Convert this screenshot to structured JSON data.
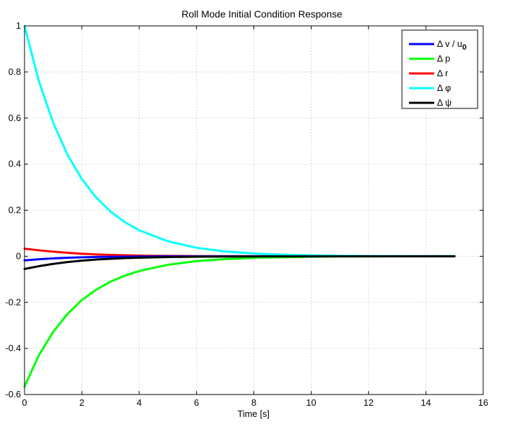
{
  "chart_data": {
    "type": "line",
    "title": "Roll Mode Initial Condition Response",
    "xlabel": "Time [s]",
    "ylabel": "",
    "xlim": [
      0,
      16
    ],
    "ylim": [
      -0.6,
      1
    ],
    "xticks": [
      0,
      2,
      4,
      6,
      8,
      10,
      12,
      14,
      16
    ],
    "yticks": [
      -0.6,
      -0.4,
      -0.2,
      0,
      0.2,
      0.4,
      0.6,
      0.8,
      1
    ],
    "xtick_labels": [
      "0",
      "2",
      "4",
      "6",
      "8",
      "10",
      "12",
      "14",
      "16"
    ],
    "ytick_labels": [
      "-0.6",
      "-0.4",
      "-0.2",
      "0",
      "0.2",
      "0.4",
      "0.6",
      "0.8",
      "1"
    ],
    "grid": true,
    "legend_position": "top-right",
    "series": [
      {
        "name": "Δ v / u0",
        "legend_main": "Δ v / u",
        "legend_sub": "0",
        "color": "#0000ff",
        "x": [
          0,
          0.5,
          1,
          1.5,
          2,
          2.5,
          3,
          4,
          5,
          6,
          7,
          8,
          10,
          12,
          14,
          15
        ],
        "y": [
          -0.018,
          -0.013,
          -0.009,
          -0.0065,
          -0.0045,
          -0.0032,
          -0.0022,
          -0.001,
          -0.0005,
          -0.0002,
          -0.0001,
          0,
          0,
          0,
          0,
          0
        ]
      },
      {
        "name": "Δ p",
        "legend_main": "Δ p",
        "legend_sub": "",
        "color": "#00ff00",
        "x": [
          0,
          0.5,
          1,
          1.5,
          2,
          2.5,
          3,
          3.5,
          4,
          5,
          6,
          7,
          8,
          9,
          10,
          11,
          12,
          13,
          14,
          15
        ],
        "y": [
          -0.565,
          -0.43,
          -0.328,
          -0.25,
          -0.19,
          -0.145,
          -0.11,
          -0.084,
          -0.064,
          -0.037,
          -0.021,
          -0.012,
          -0.007,
          -0.004,
          -0.0023,
          -0.0013,
          -0.0008,
          -0.0004,
          -0.0002,
          -0.0001
        ]
      },
      {
        "name": "Δ r",
        "legend_main": "Δ r",
        "legend_sub": "",
        "color": "#ff0000",
        "x": [
          0,
          0.5,
          1,
          1.5,
          2,
          2.5,
          3,
          4,
          5,
          6,
          7,
          8,
          10,
          12,
          14,
          15
        ],
        "y": [
          0.033,
          0.026,
          0.02,
          0.015,
          0.011,
          0.008,
          0.006,
          0.0032,
          0.0017,
          0.0009,
          0.0005,
          0.0002,
          0.0001,
          0,
          0,
          0
        ]
      },
      {
        "name": "Δ φ",
        "legend_main": "Δ φ",
        "legend_sub": "",
        "color": "#00ffff",
        "x": [
          0,
          0.5,
          1,
          1.5,
          2,
          2.5,
          3,
          3.5,
          4,
          5,
          6,
          7,
          8,
          9,
          10,
          11,
          12,
          13,
          14,
          15
        ],
        "y": [
          1.0,
          0.76,
          0.58,
          0.44,
          0.335,
          0.255,
          0.194,
          0.148,
          0.113,
          0.065,
          0.037,
          0.021,
          0.012,
          0.007,
          0.004,
          0.0023,
          0.0013,
          0.0008,
          0.0004,
          0.0002
        ]
      },
      {
        "name": "Δ ψ",
        "legend_main": "Δ ψ",
        "legend_sub": "",
        "color": "#000000",
        "x": [
          0,
          0.5,
          1,
          1.5,
          2,
          2.5,
          3,
          3.5,
          4,
          5,
          6,
          7,
          8,
          10,
          12,
          14,
          15
        ],
        "y": [
          -0.055,
          -0.043,
          -0.033,
          -0.025,
          -0.019,
          -0.014,
          -0.011,
          -0.008,
          -0.006,
          -0.0034,
          -0.0019,
          -0.001,
          -0.0006,
          -0.0002,
          0,
          0,
          0
        ]
      }
    ]
  }
}
